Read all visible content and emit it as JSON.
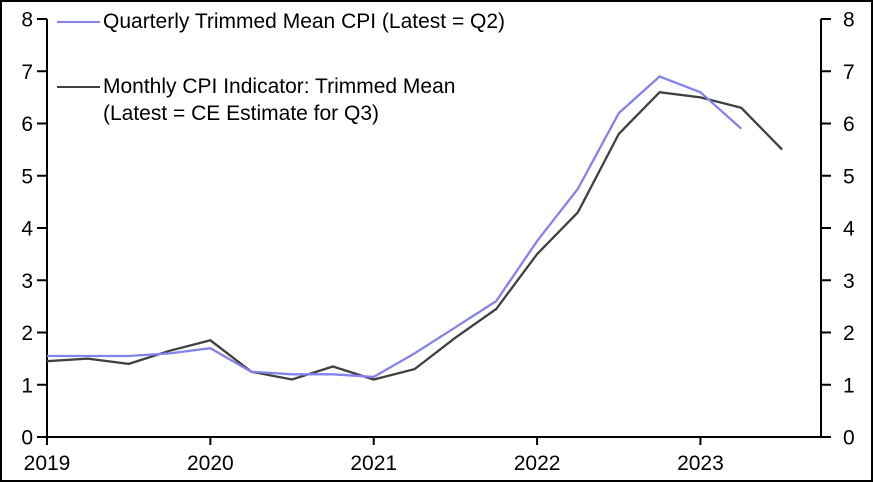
{
  "legend": {
    "quarterly_label": "Quarterly Trimmed Mean CPI (Latest = Q2)",
    "monthly_label_line1": "Monthly CPI Indicator: Trimmed Mean",
    "monthly_label_line2": "(Latest = CE Estimate for Q3)"
  },
  "axes": {
    "left_tick_labels": [
      "0",
      "1",
      "2",
      "3",
      "4",
      "5",
      "6",
      "7",
      "8"
    ],
    "right_tick_labels": [
      "0",
      "1",
      "2",
      "3",
      "4",
      "5",
      "6",
      "7",
      "8"
    ],
    "x_tick_labels": [
      "2019",
      "2020",
      "2021",
      "2022",
      "2023"
    ]
  },
  "colors": {
    "quarterly_line": "#8582e9",
    "monthly_line": "#404040",
    "axis": "#000000",
    "background": "#ffffff"
  },
  "chart_data": {
    "type": "line",
    "title": "",
    "xlabel": "",
    "ylabel": "",
    "ylim": [
      0,
      8
    ],
    "y_ticks": [
      0,
      1,
      2,
      3,
      4,
      5,
      6,
      7,
      8
    ],
    "x_tick_labels": [
      "2019",
      "2020",
      "2021",
      "2022",
      "2023"
    ],
    "x_unit": "quarter",
    "grid": false,
    "dual_y_axis": true,
    "legend_position": "top-left",
    "series": [
      {
        "name": "Quarterly Trimmed Mean CPI (Latest = Q2)",
        "color": "#8582e9",
        "quarters": [
          "2019Q1",
          "2019Q2",
          "2019Q3",
          "2019Q4",
          "2020Q1",
          "2020Q2",
          "2020Q3",
          "2020Q4",
          "2021Q1",
          "2021Q2",
          "2021Q3",
          "2021Q4",
          "2022Q1",
          "2022Q2",
          "2022Q3",
          "2022Q4",
          "2023Q1",
          "2023Q2"
        ],
        "values": [
          1.55,
          1.55,
          1.55,
          1.6,
          1.7,
          1.25,
          1.2,
          1.2,
          1.15,
          1.6,
          2.1,
          2.6,
          3.75,
          4.75,
          6.2,
          6.9,
          6.6,
          5.9
        ]
      },
      {
        "name": "Monthly CPI Indicator: Trimmed Mean (Latest = CE Estimate for Q3)",
        "color": "#404040",
        "quarters": [
          "2019Q1",
          "2019Q2",
          "2019Q3",
          "2019Q4",
          "2020Q1",
          "2020Q2",
          "2020Q3",
          "2020Q4",
          "2021Q1",
          "2021Q2",
          "2021Q3",
          "2021Q4",
          "2022Q1",
          "2022Q2",
          "2022Q3",
          "2022Q4",
          "2023Q1",
          "2023Q2",
          "2023Q3"
        ],
        "values": [
          1.45,
          1.5,
          1.4,
          1.65,
          1.85,
          1.25,
          1.1,
          1.35,
          1.1,
          1.3,
          1.9,
          2.45,
          3.5,
          4.3,
          5.8,
          6.6,
          6.5,
          6.3,
          5.5
        ]
      }
    ]
  }
}
